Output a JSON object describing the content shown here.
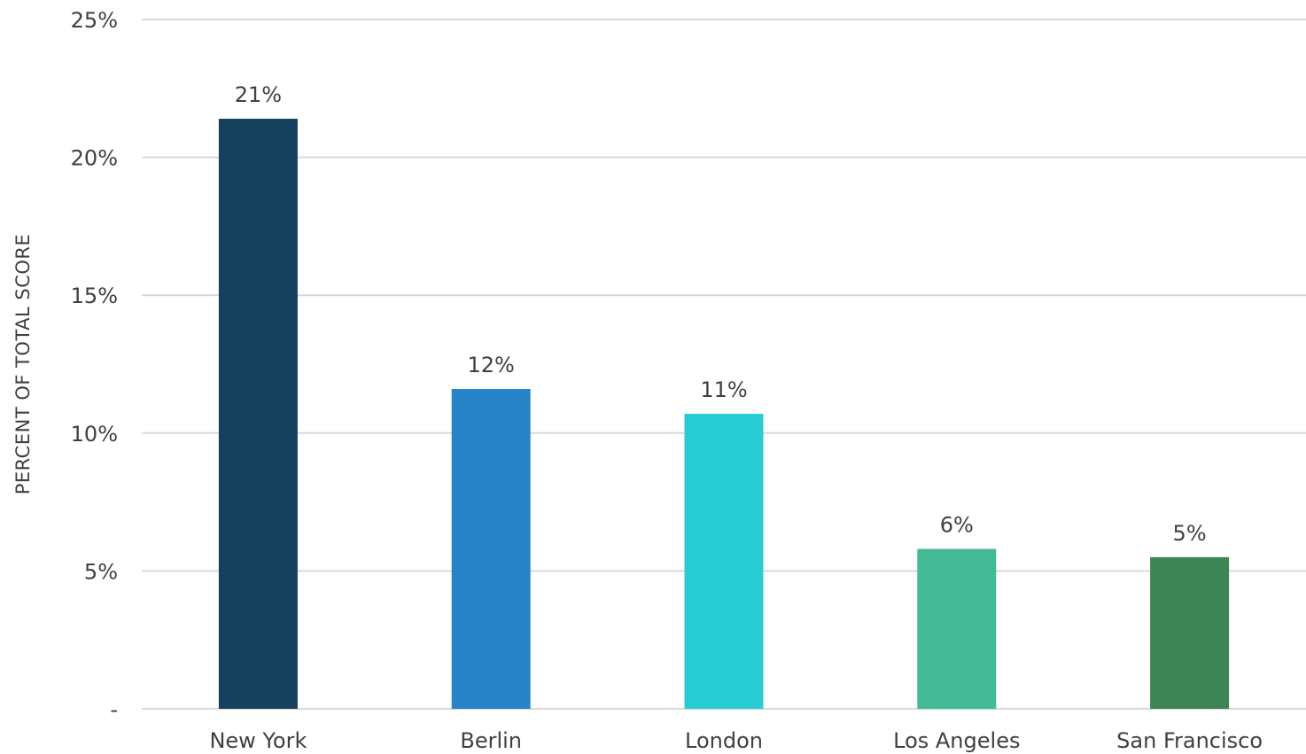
{
  "chart_data": {
    "type": "bar",
    "title": "",
    "xlabel": "",
    "ylabel": "PERCENT OF TOTAL SCORE",
    "ylim": [
      0,
      25
    ],
    "yticks": [
      0,
      5,
      10,
      15,
      20,
      25
    ],
    "ytick_labels": [
      "-",
      "5%",
      "10%",
      "15%",
      "20%",
      "25%"
    ],
    "grid": true,
    "legend": "none",
    "categories": [
      "New York",
      "Berlin",
      "London",
      "Los Angeles",
      "San Francisco"
    ],
    "values": [
      21.4,
      11.6,
      10.7,
      5.8,
      5.5
    ],
    "data_labels": [
      "21%",
      "12%",
      "11%",
      "6%",
      "5%"
    ],
    "colors": [
      "#17405f",
      "#2884c8",
      "#28ccd5",
      "#43b995",
      "#3d8555"
    ]
  }
}
